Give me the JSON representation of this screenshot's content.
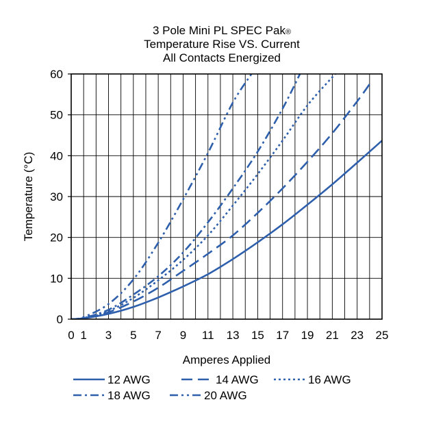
{
  "chart_data": {
    "type": "line",
    "title_lines": [
      "3 Pole Mini PL SPEC Pak",
      "Temperature Rise VS. Current",
      "All Contacts Energized"
    ],
    "title_mark": "®",
    "xlabel": "Amperes Applied",
    "ylabel": "Temperature (°C)",
    "xlim": [
      0,
      25
    ],
    "ylim": [
      0,
      60
    ],
    "xticks": [
      0,
      1,
      3,
      5,
      7,
      9,
      11,
      13,
      15,
      17,
      19,
      21,
      23,
      25
    ],
    "yticks": [
      0,
      10,
      20,
      30,
      40,
      50,
      60
    ],
    "grid": true,
    "legend_position": "bottom",
    "series": [
      {
        "name": "12 AWG",
        "style": "solid",
        "color": "#2E5FAC",
        "x": [
          0,
          1,
          3,
          5,
          7,
          9,
          11,
          13,
          15,
          17,
          19,
          21,
          23,
          25
        ],
        "y": [
          0,
          0.2,
          1.3,
          3.0,
          5.3,
          8.0,
          11.0,
          14.7,
          18.8,
          23.2,
          28.0,
          33.0,
          38.3,
          43.7
        ]
      },
      {
        "name": "14 AWG",
        "style": "dash",
        "color": "#2E5FAC",
        "x": [
          0,
          1,
          3,
          5,
          7,
          9,
          11,
          13,
          15,
          17,
          19,
          21,
          23,
          24
        ],
        "y": [
          0,
          0.2,
          1.7,
          4.3,
          7.7,
          11.8,
          16.0,
          20.5,
          26.0,
          32.0,
          38.5,
          45.5,
          53.3,
          57.5
        ]
      },
      {
        "name": "16 AWG",
        "style": "dot",
        "color": "#2E5FAC",
        "x": [
          0,
          1,
          3,
          5,
          7,
          9,
          11,
          13,
          15,
          17,
          19,
          21,
          21.6
        ],
        "y": [
          0,
          0.3,
          2.0,
          5.2,
          9.5,
          14.5,
          20.5,
          27.8,
          35.5,
          43.7,
          52.3,
          59.2,
          61.0
        ]
      },
      {
        "name": "18 AWG",
        "style": "dashdot",
        "color": "#2E5FAC",
        "x": [
          0,
          1,
          3,
          5,
          7,
          9,
          11,
          13,
          15,
          17,
          18.4
        ],
        "y": [
          0,
          0.3,
          2.3,
          6.0,
          10.5,
          16.3,
          23.7,
          32.0,
          41.0,
          51.5,
          60.0
        ]
      },
      {
        "name": "20 AWG",
        "style": "dashdotdot",
        "color": "#2E5FAC",
        "x": [
          0,
          1,
          3,
          5,
          7,
          9,
          11,
          13,
          14.5
        ],
        "y": [
          0,
          0.5,
          3.7,
          9.7,
          18.7,
          29.3,
          40.7,
          53.0,
          60.0
        ]
      }
    ]
  }
}
